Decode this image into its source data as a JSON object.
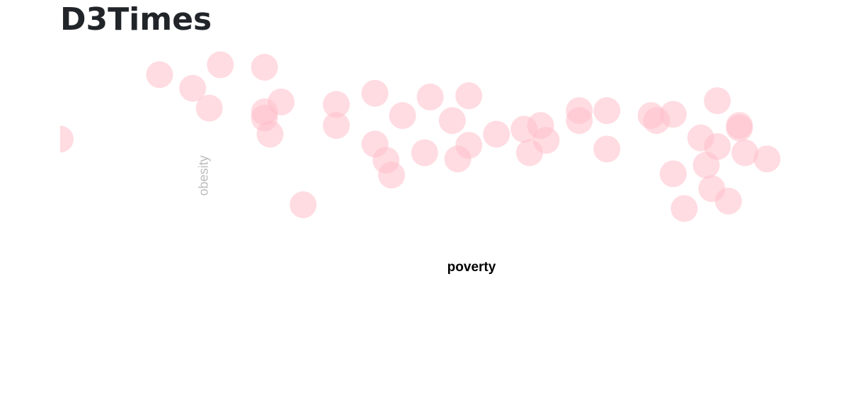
{
  "chart_data": {
    "type": "scatter",
    "title": "D3Times",
    "x_label": "poverty",
    "y_label": "obesity",
    "x": [
      9.0,
      10.8,
      11.4,
      11.7,
      11.9,
      12.7,
      12.7,
      12.7,
      12.8,
      13.0,
      13.4,
      14.0,
      14.0,
      14.7,
      14.7,
      14.9,
      15.0,
      15.2,
      15.6,
      15.7,
      16.1,
      16.2,
      16.4,
      16.4,
      16.9,
      17.4,
      17.5,
      17.7,
      17.8,
      18.4,
      18.4,
      18.9,
      18.9,
      19.7,
      19.8,
      20.1,
      20.1,
      20.3,
      20.6,
      20.7,
      20.8,
      20.9,
      20.9,
      21.1,
      21.3,
      21.3,
      21.4,
      21.8
    ],
    "values": [
      28.2,
      33.4,
      32.3,
      30.7,
      34.2,
      34.0,
      30.4,
      29.9,
      28.6,
      31.2,
      22.9,
      31.0,
      29.3,
      31.9,
      27.8,
      26.5,
      25.3,
      30.1,
      27.1,
      31.6,
      29.7,
      26.6,
      31.7,
      27.7,
      28.6,
      29.0,
      27.1,
      29.3,
      28.1,
      30.5,
      29.7,
      30.5,
      27.4,
      30.1,
      29.7,
      30.2,
      25.4,
      22.6,
      28.3,
      26.1,
      24.2,
      31.3,
      27.6,
      23.2,
      29.3,
      29.1,
      27.1,
      26.6
    ],
    "color": "pink",
    "xlim": [
      9,
      22
    ],
    "ylim": [
      20,
      36
    ]
  }
}
